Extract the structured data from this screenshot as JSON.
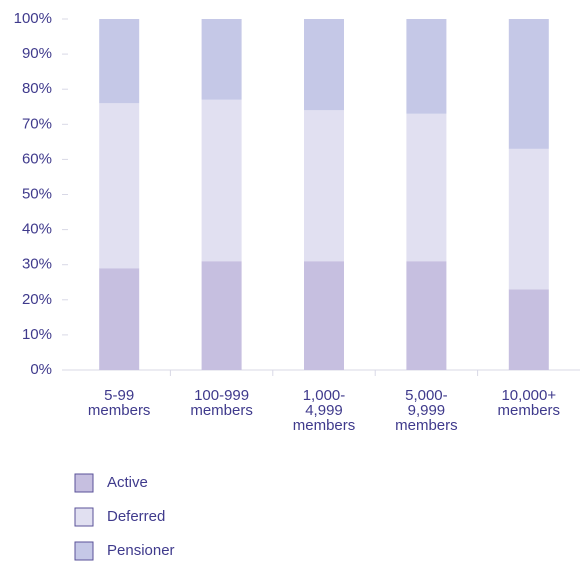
{
  "chart_data": {
    "type": "stacked_bar",
    "categories": [
      "5-99 members",
      "100-999 members",
      "1,000-4,999 members",
      "5,000-9,999 members",
      "10,000+ members"
    ],
    "series": [
      {
        "name": "Active",
        "color": "#c6bfe0",
        "values": [
          29,
          31,
          31,
          31,
          23
        ]
      },
      {
        "name": "Deferred",
        "color": "#e1e0f1",
        "values": [
          47,
          46,
          43,
          42,
          40
        ]
      },
      {
        "name": "Pensioner",
        "color": "#c5c8e7",
        "values": [
          24,
          23,
          26,
          27,
          37
        ]
      }
    ],
    "ylim": [
      0,
      100
    ],
    "yticks": [
      {
        "value": 0,
        "label": "0%"
      },
      {
        "value": 10,
        "label": "10%"
      },
      {
        "value": 20,
        "label": "20%"
      },
      {
        "value": 30,
        "label": "30%"
      },
      {
        "value": 40,
        "label": "40%"
      },
      {
        "value": 50,
        "label": "50%"
      },
      {
        "value": 60,
        "label": "60%"
      },
      {
        "value": 70,
        "label": "70%"
      },
      {
        "value": 80,
        "label": "80%"
      },
      {
        "value": 90,
        "label": "90%"
      },
      {
        "value": 100,
        "label": "100%"
      }
    ],
    "legend": "bottom-left"
  }
}
